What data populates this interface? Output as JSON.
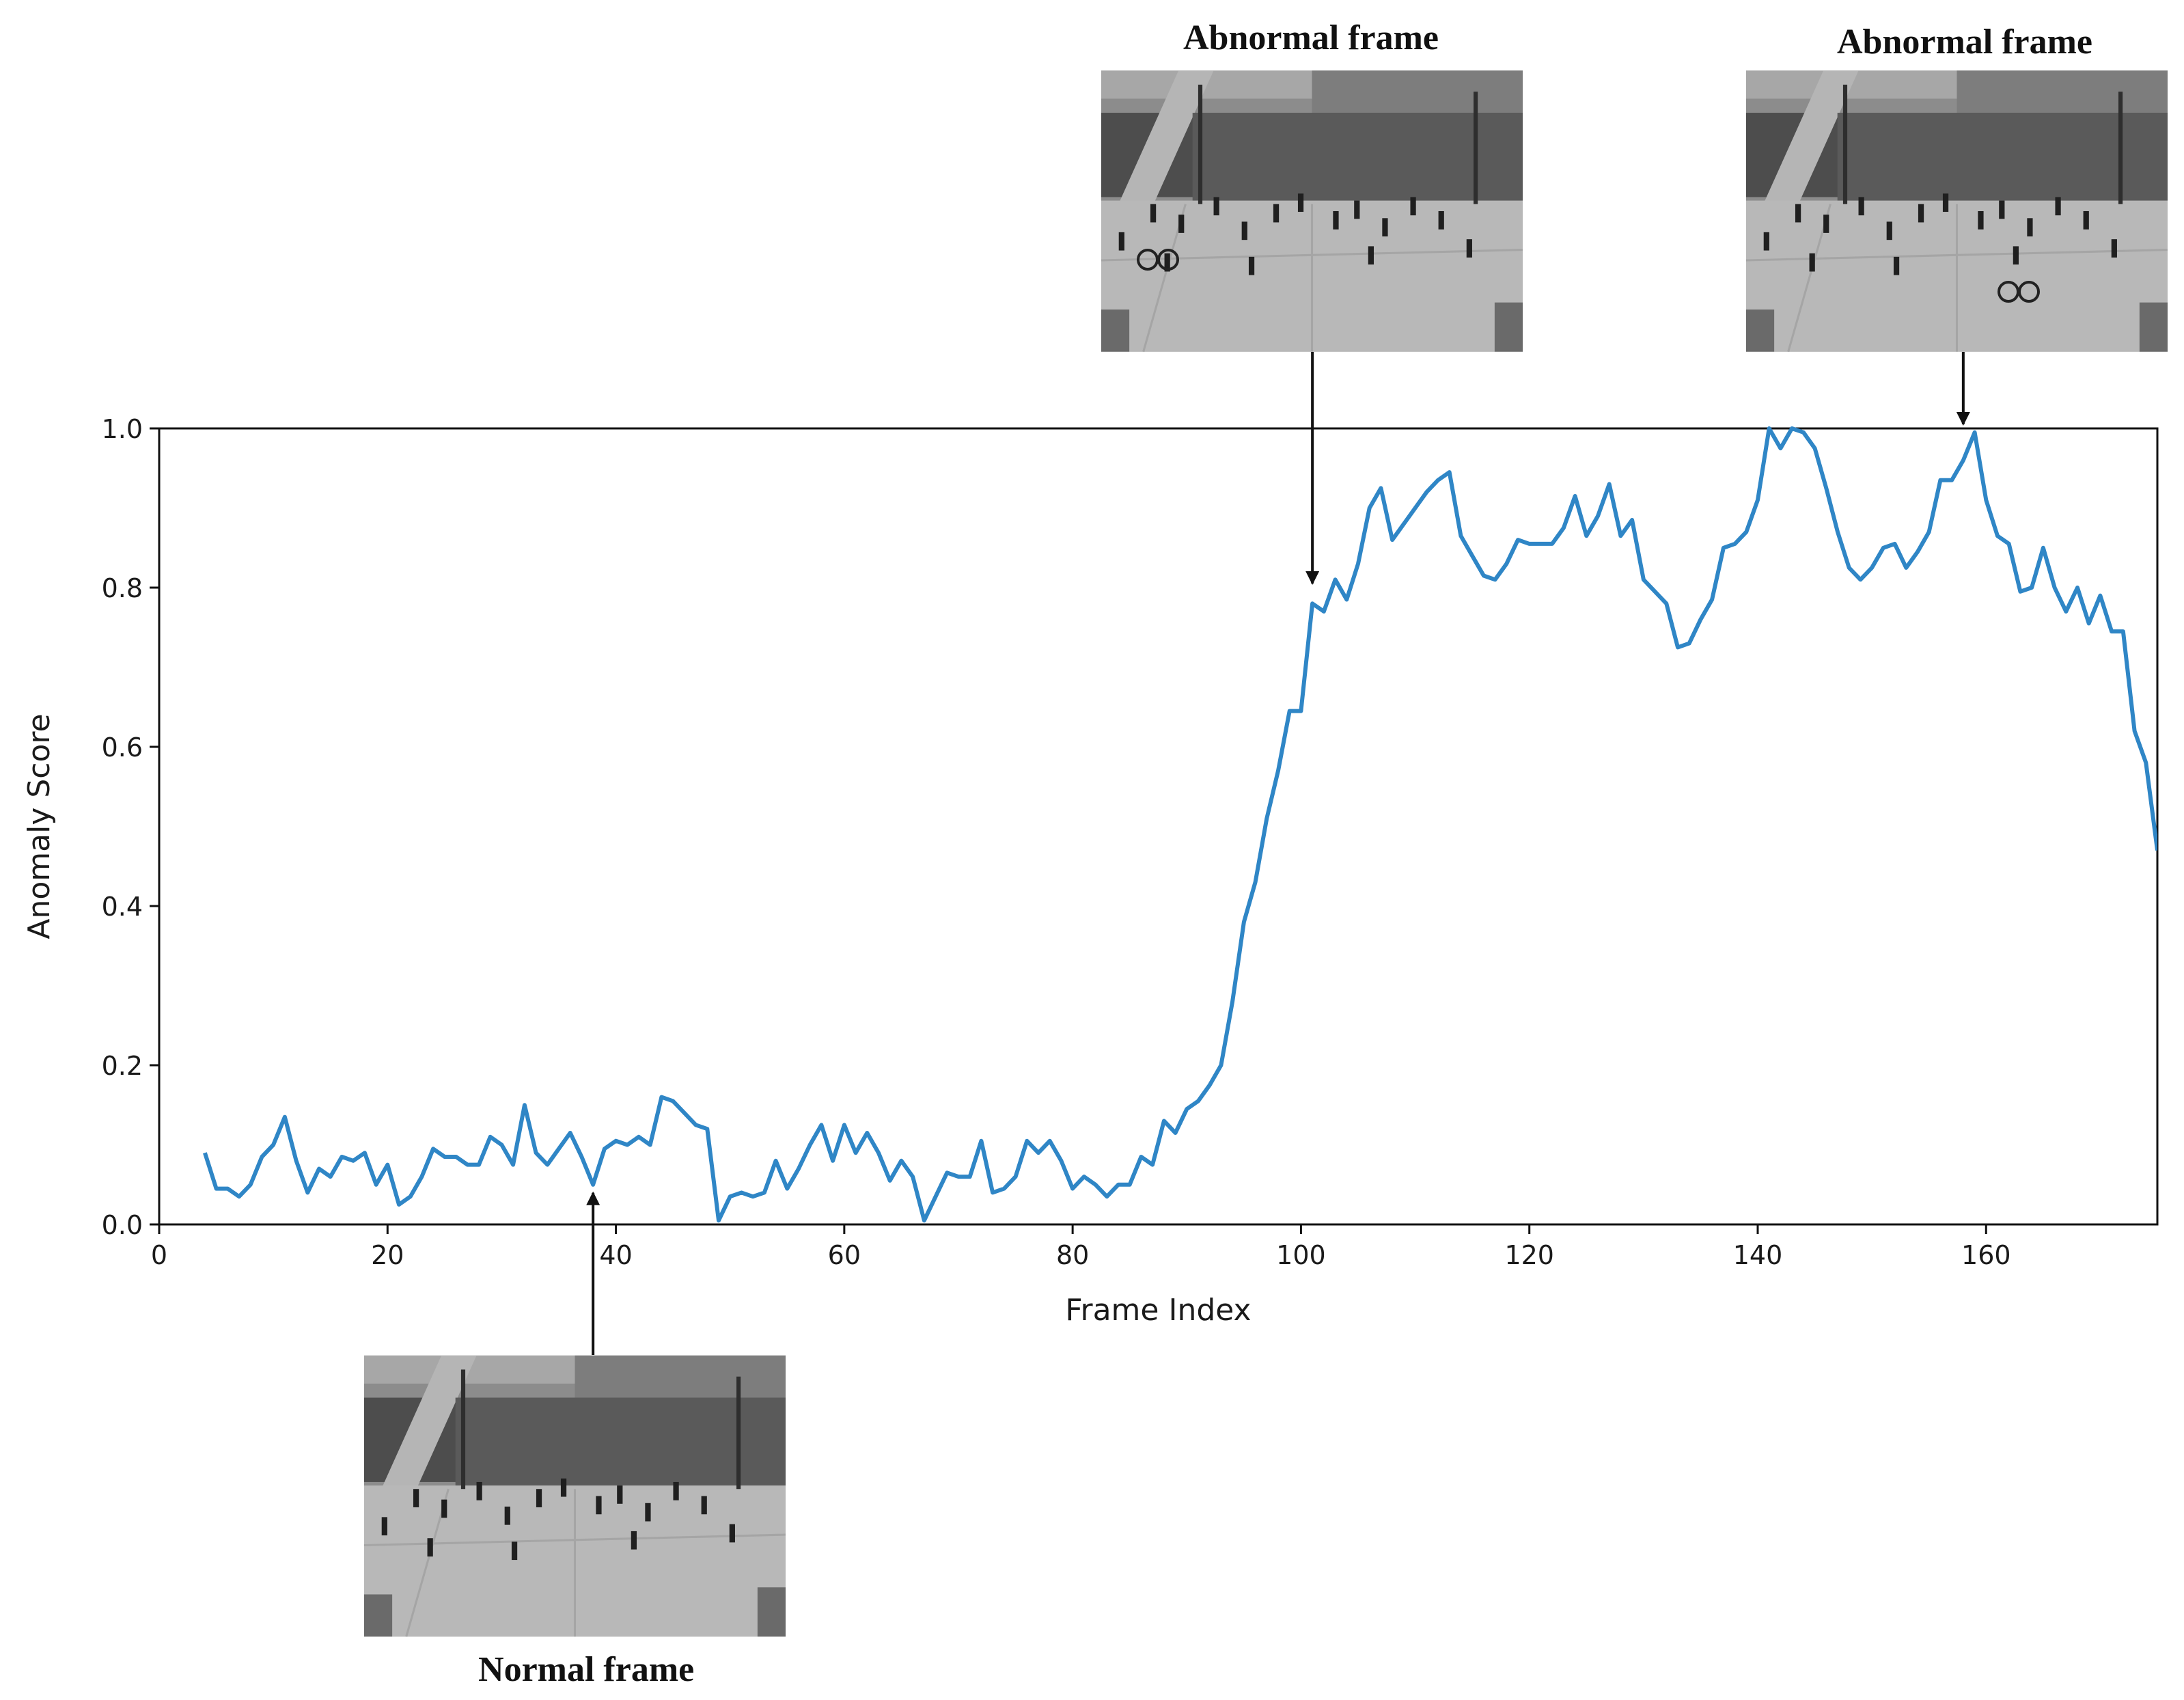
{
  "chart_data": {
    "type": "line",
    "xlabel": "Frame Index",
    "ylabel": "Anomaly Score",
    "xlim": [
      0,
      175
    ],
    "ylim": [
      0,
      1.0
    ],
    "xticks": [
      0,
      20,
      40,
      60,
      80,
      100,
      120,
      140,
      160
    ],
    "yticks": [
      "0.0",
      "0.2",
      "0.4",
      "0.6",
      "0.8",
      "1.0"
    ],
    "grid": false,
    "line_color": "#2f86c6",
    "series": [
      {
        "x": [
          4,
          5,
          6,
          7,
          8,
          9,
          10,
          11,
          12,
          13,
          14,
          15,
          16,
          17,
          18,
          19,
          20,
          21,
          22,
          23,
          24,
          25,
          26,
          27,
          28,
          29,
          30,
          31,
          32,
          33,
          34,
          35,
          36,
          37,
          38,
          39,
          40,
          41,
          42,
          43,
          44,
          45,
          46,
          47,
          48,
          49,
          50,
          51,
          52,
          53,
          54,
          55,
          56,
          57,
          58,
          59,
          60,
          61,
          62,
          63,
          64,
          65,
          66,
          67,
          68,
          69,
          70,
          71,
          72,
          73,
          74,
          75,
          76,
          77,
          78,
          79,
          80,
          81,
          82,
          83,
          84,
          85,
          86,
          87,
          88,
          89,
          90,
          91,
          92,
          93,
          94,
          95,
          96,
          97,
          98,
          99,
          100,
          101,
          102,
          103,
          104,
          105,
          106,
          107,
          108,
          109,
          110,
          111,
          112,
          113,
          114,
          115,
          116,
          117,
          118,
          119,
          120,
          121,
          122,
          123,
          124,
          125,
          126,
          127,
          128,
          129,
          130,
          131,
          132,
          133,
          134,
          135,
          136,
          137,
          138,
          139,
          140,
          141,
          142,
          143,
          144,
          145,
          146,
          147,
          148,
          149,
          150,
          151,
          152,
          153,
          154,
          155,
          156,
          157,
          158,
          159,
          160,
          161,
          162,
          163,
          164,
          165,
          166,
          167,
          168,
          169,
          170,
          171,
          172,
          173,
          174,
          175
        ],
        "y": [
          0.09,
          0.045,
          0.045,
          0.035,
          0.05,
          0.085,
          0.1,
          0.135,
          0.08,
          0.04,
          0.07,
          0.06,
          0.085,
          0.08,
          0.09,
          0.05,
          0.075,
          0.025,
          0.035,
          0.06,
          0.095,
          0.085,
          0.085,
          0.075,
          0.075,
          0.11,
          0.1,
          0.075,
          0.15,
          0.09,
          0.075,
          0.095,
          0.115,
          0.085,
          0.05,
          0.095,
          0.105,
          0.1,
          0.11,
          0.1,
          0.16,
          0.155,
          0.14,
          0.125,
          0.12,
          0.005,
          0.035,
          0.04,
          0.035,
          0.04,
          0.08,
          0.045,
          0.07,
          0.1,
          0.125,
          0.08,
          0.125,
          0.09,
          0.115,
          0.09,
          0.055,
          0.08,
          0.06,
          0.005,
          0.035,
          0.065,
          0.06,
          0.06,
          0.105,
          0.04,
          0.045,
          0.06,
          0.105,
          0.09,
          0.105,
          0.08,
          0.045,
          0.06,
          0.05,
          0.035,
          0.05,
          0.05,
          0.085,
          0.075,
          0.13,
          0.115,
          0.145,
          0.155,
          0.175,
          0.2,
          0.28,
          0.38,
          0.43,
          0.51,
          0.57,
          0.645,
          0.645,
          0.78,
          0.77,
          0.81,
          0.785,
          0.83,
          0.9,
          0.925,
          0.86,
          0.88,
          0.9,
          0.92,
          0.935,
          0.945,
          0.865,
          0.84,
          0.815,
          0.81,
          0.83,
          0.86,
          0.855,
          0.855,
          0.855,
          0.875,
          0.915,
          0.865,
          0.89,
          0.93,
          0.865,
          0.885,
          0.81,
          0.795,
          0.78,
          0.725,
          0.73,
          0.76,
          0.785,
          0.85,
          0.855,
          0.87,
          0.91,
          1.0,
          0.975,
          1.0,
          0.995,
          0.975,
          0.925,
          0.87,
          0.825,
          0.81,
          0.825,
          0.85,
          0.855,
          0.825,
          0.845,
          0.87,
          0.935,
          0.935,
          0.96,
          0.995,
          0.91,
          0.865,
          0.855,
          0.795,
          0.8,
          0.85,
          0.8,
          0.77,
          0.8,
          0.755,
          0.79,
          0.745,
          0.745,
          0.62,
          0.58,
          0.47
        ]
      }
    ],
    "annotations": [
      {
        "label": "Normal frame",
        "x": 38,
        "y": 0.05
      },
      {
        "label": "Abnormal frame",
        "x": 101,
        "y": 0.8
      },
      {
        "label": "Abnormal frame",
        "x": 158,
        "y": 1.0
      }
    ]
  }
}
